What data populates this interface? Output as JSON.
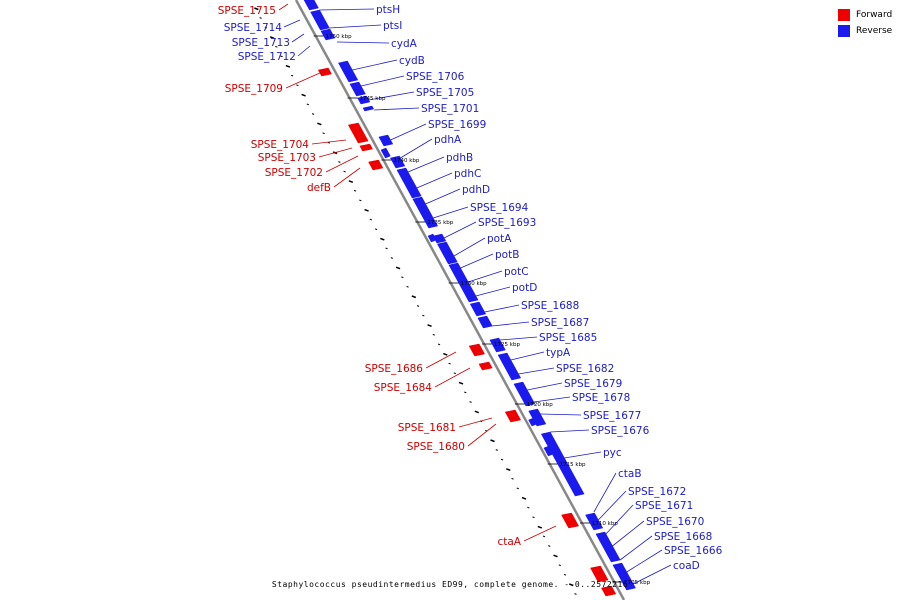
{
  "colors": {
    "forward": "#ee0000",
    "reverse": "#1a1aee",
    "axis": "#888888",
    "tick": "#000000",
    "text_forward": "#cc0000",
    "text_reverse": "#1c1cc8"
  },
  "legend": {
    "forward": "Forward",
    "reverse": "Reverse"
  },
  "caption": "Staphylococcus pseudintermedius ED99, complete genome. - 0..2572216",
  "kbp_markers": [
    "1750 kbp",
    "1745 kbp",
    "1740 kbp",
    "1735 kbp",
    "1730 kbp",
    "1725 kbp",
    "1720 kbp",
    "1715 kbp",
    "1710 kbp",
    "1705 kbp"
  ],
  "reverse_genes": [
    "ptsH",
    "ptsI",
    "cydA",
    "cydB",
    "SPSE_1706",
    "SPSE_1705",
    "SPSE_1701",
    "SPSE_1699",
    "pdhA",
    "pdhB",
    "pdhC",
    "pdhD",
    "SPSE_1694",
    "SPSE_1693",
    "potA",
    "potB",
    "potC",
    "potD",
    "SPSE_1688",
    "SPSE_1687",
    "SPSE_1685",
    "typA",
    "SPSE_1682",
    "SPSE_1679",
    "SPSE_1678",
    "SPSE_1677",
    "SPSE_1676",
    "pyc",
    "ctaB",
    "SPSE_1672",
    "SPSE_1671",
    "SPSE_1670",
    "SPSE_1668",
    "SPSE_1666",
    "coaD"
  ],
  "left_reverse_genes": [
    "SPSE_1714",
    "SPSE_1713",
    "SPSE_1712"
  ],
  "forward_genes": [
    "SPSE_1715",
    "SPSE_1709",
    "SPSE_1704",
    "SPSE_1703",
    "SPSE_1702",
    "defB",
    "SPSE_1686",
    "SPSE_1684",
    "SPSE_1681",
    "SPSE_1680",
    "ctaA"
  ]
}
